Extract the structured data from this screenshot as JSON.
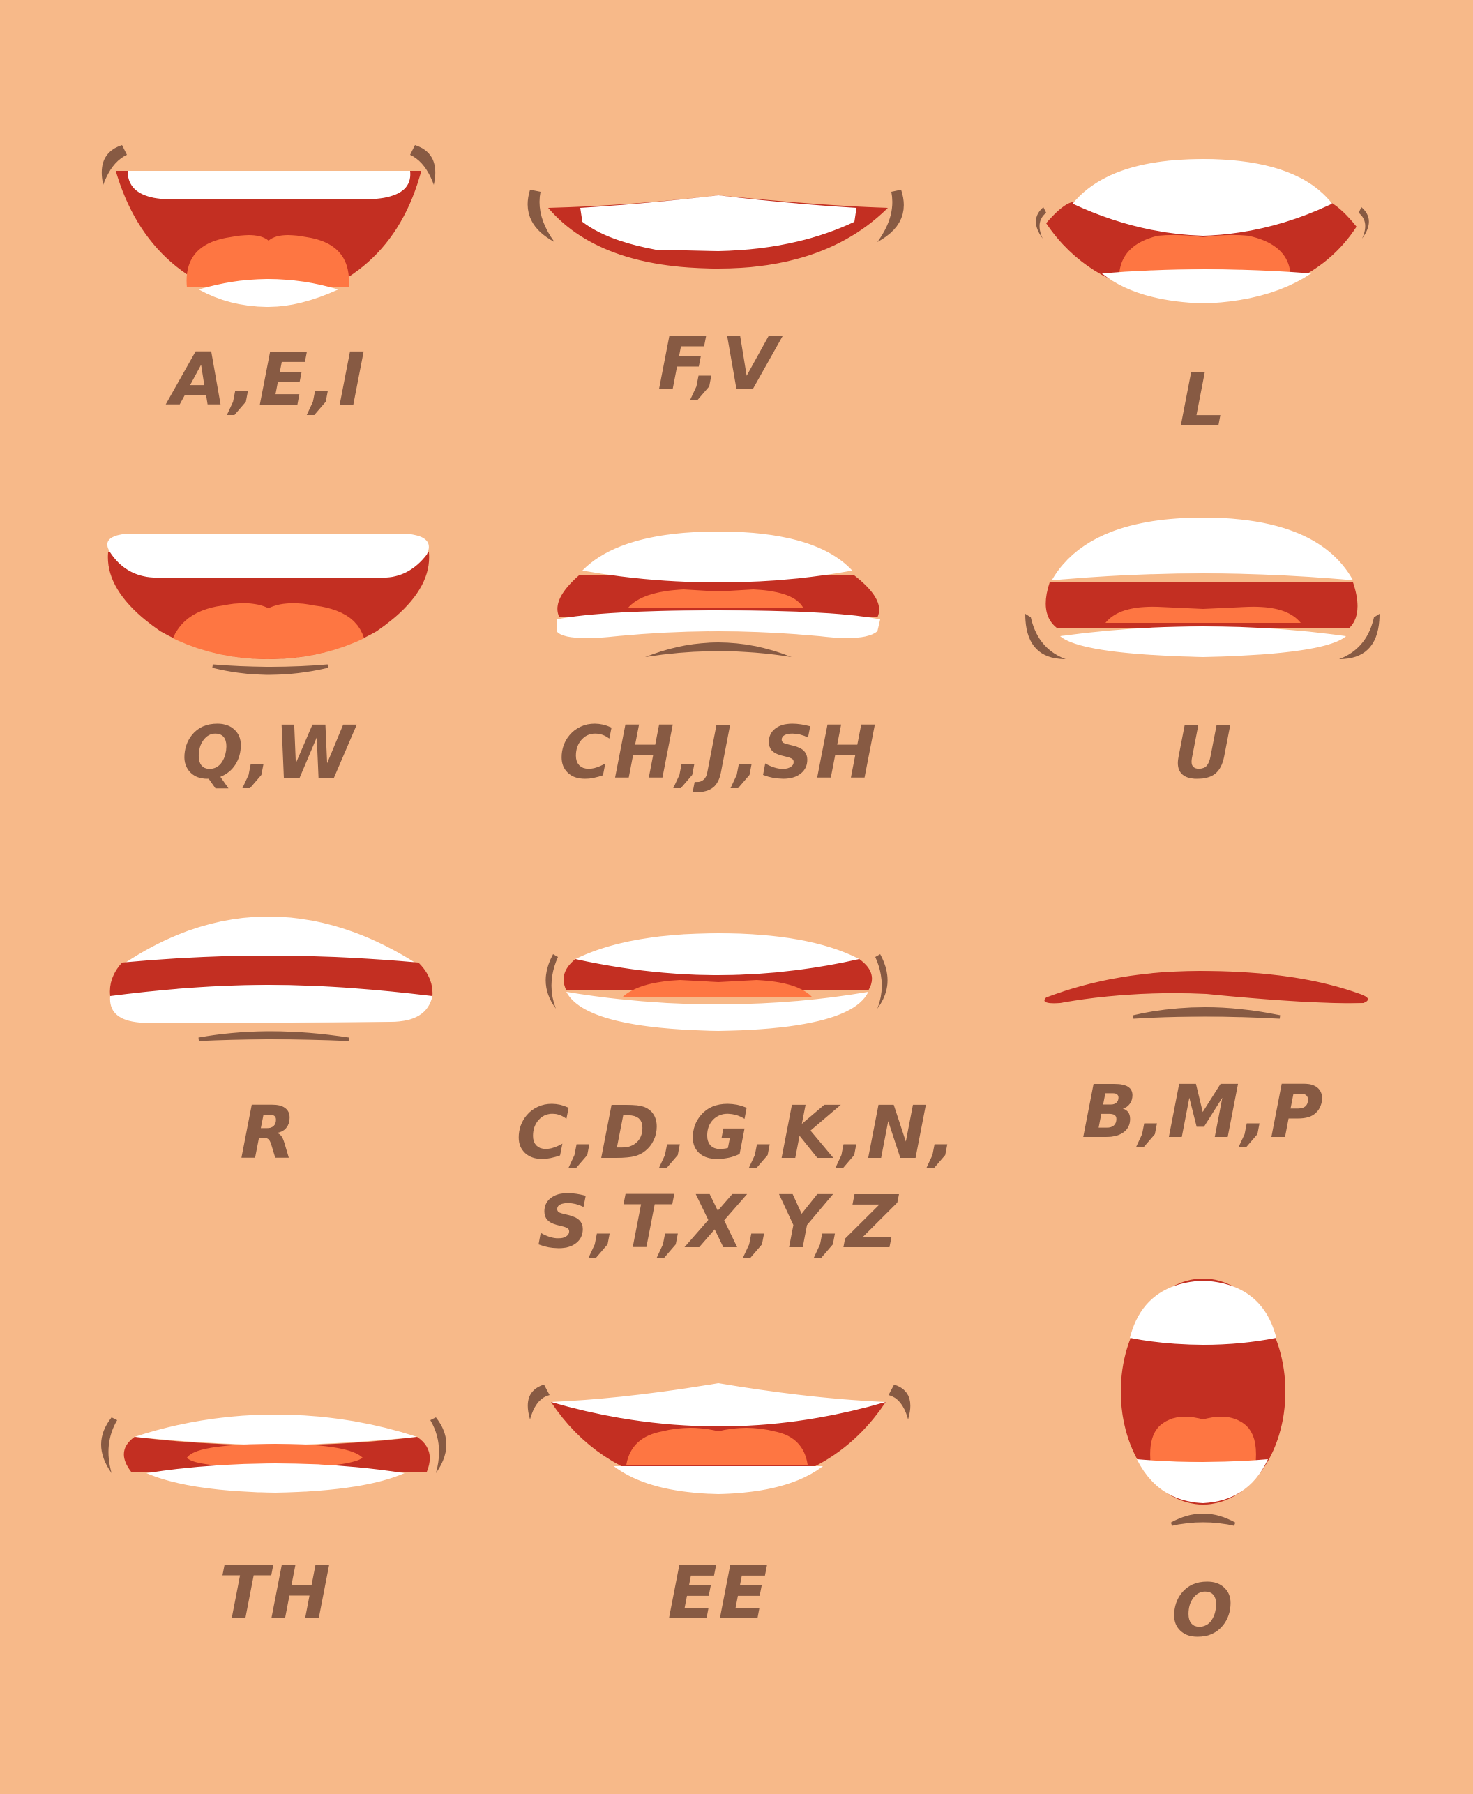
{
  "colors": {
    "background": "#f7b989",
    "lip_red": "#c32f22",
    "teeth": "#ffffff",
    "tongue": "#fe7642",
    "outline_brown": "#875a43"
  },
  "visemes": [
    {
      "id": "a-e-i",
      "label": "A,E,I"
    },
    {
      "id": "f-v",
      "label": "F,V"
    },
    {
      "id": "l-1",
      "label": "L"
    },
    {
      "id": "q-w",
      "label": "Q,W"
    },
    {
      "id": "ch-j-sh",
      "label": "CH,J,SH"
    },
    {
      "id": "u",
      "label": "U"
    },
    {
      "id": "r",
      "label": "R"
    },
    {
      "id": "cdgkn",
      "label": "C,D,G,K,N,\nS,T,X,Y,Z"
    },
    {
      "id": "b-m-p",
      "label": "B,M,P"
    },
    {
      "id": "th",
      "label": "TH"
    },
    {
      "id": "ee",
      "label": "EE"
    },
    {
      "id": "o",
      "label": "O"
    }
  ]
}
